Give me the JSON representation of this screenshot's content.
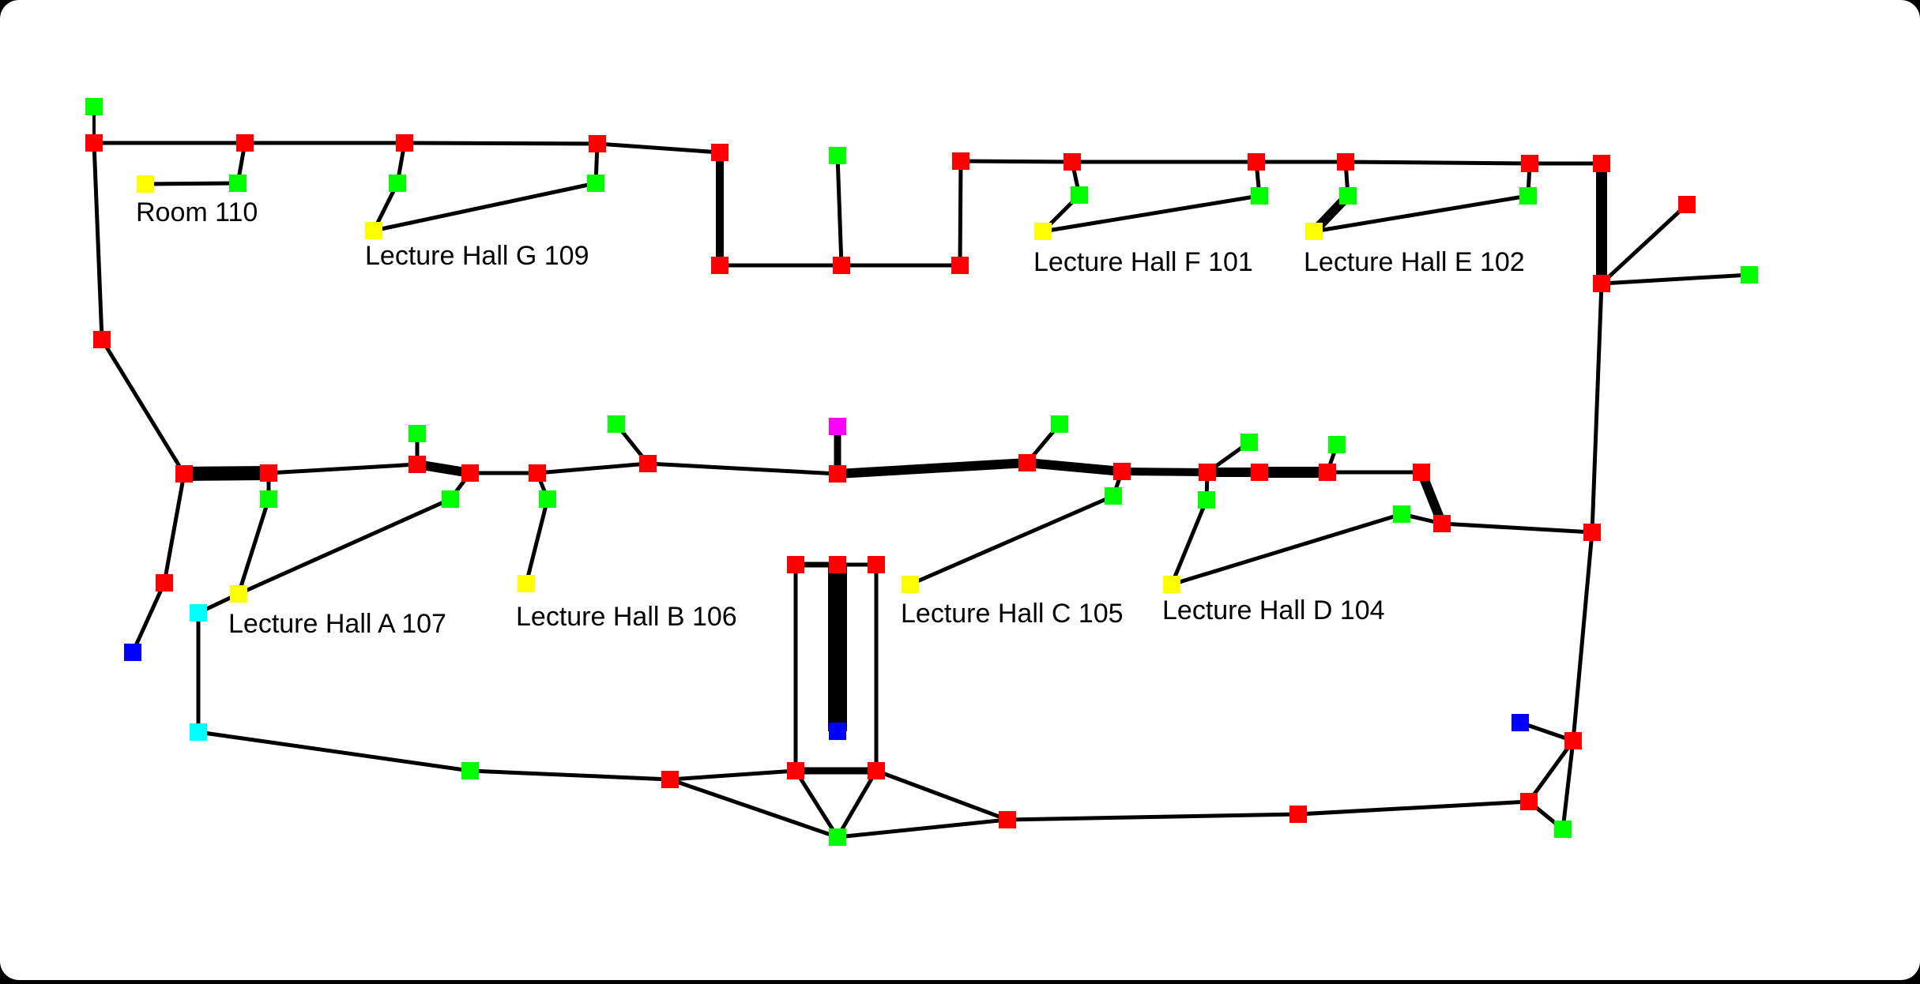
{
  "colors": {
    "background": "#ffffff",
    "frame": "#000000",
    "edge": "#000000",
    "red": "#ff0000",
    "green": "#00ff00",
    "yellow": "#ffff00",
    "cyan": "#00ffff",
    "blue": "#0000ff",
    "magenta": "#ff00ff"
  },
  "labels": {
    "room_110": "Room 110",
    "hall_g": "Lecture Hall G 109",
    "hall_f": "Lecture Hall F 101",
    "hall_e": "Lecture Hall E 102",
    "hall_a": "Lecture Hall A 107",
    "hall_b": "Lecture Hall B 106",
    "hall_c": "Lecture Hall C 105",
    "hall_d": "Lecture Hall D 104"
  }
}
